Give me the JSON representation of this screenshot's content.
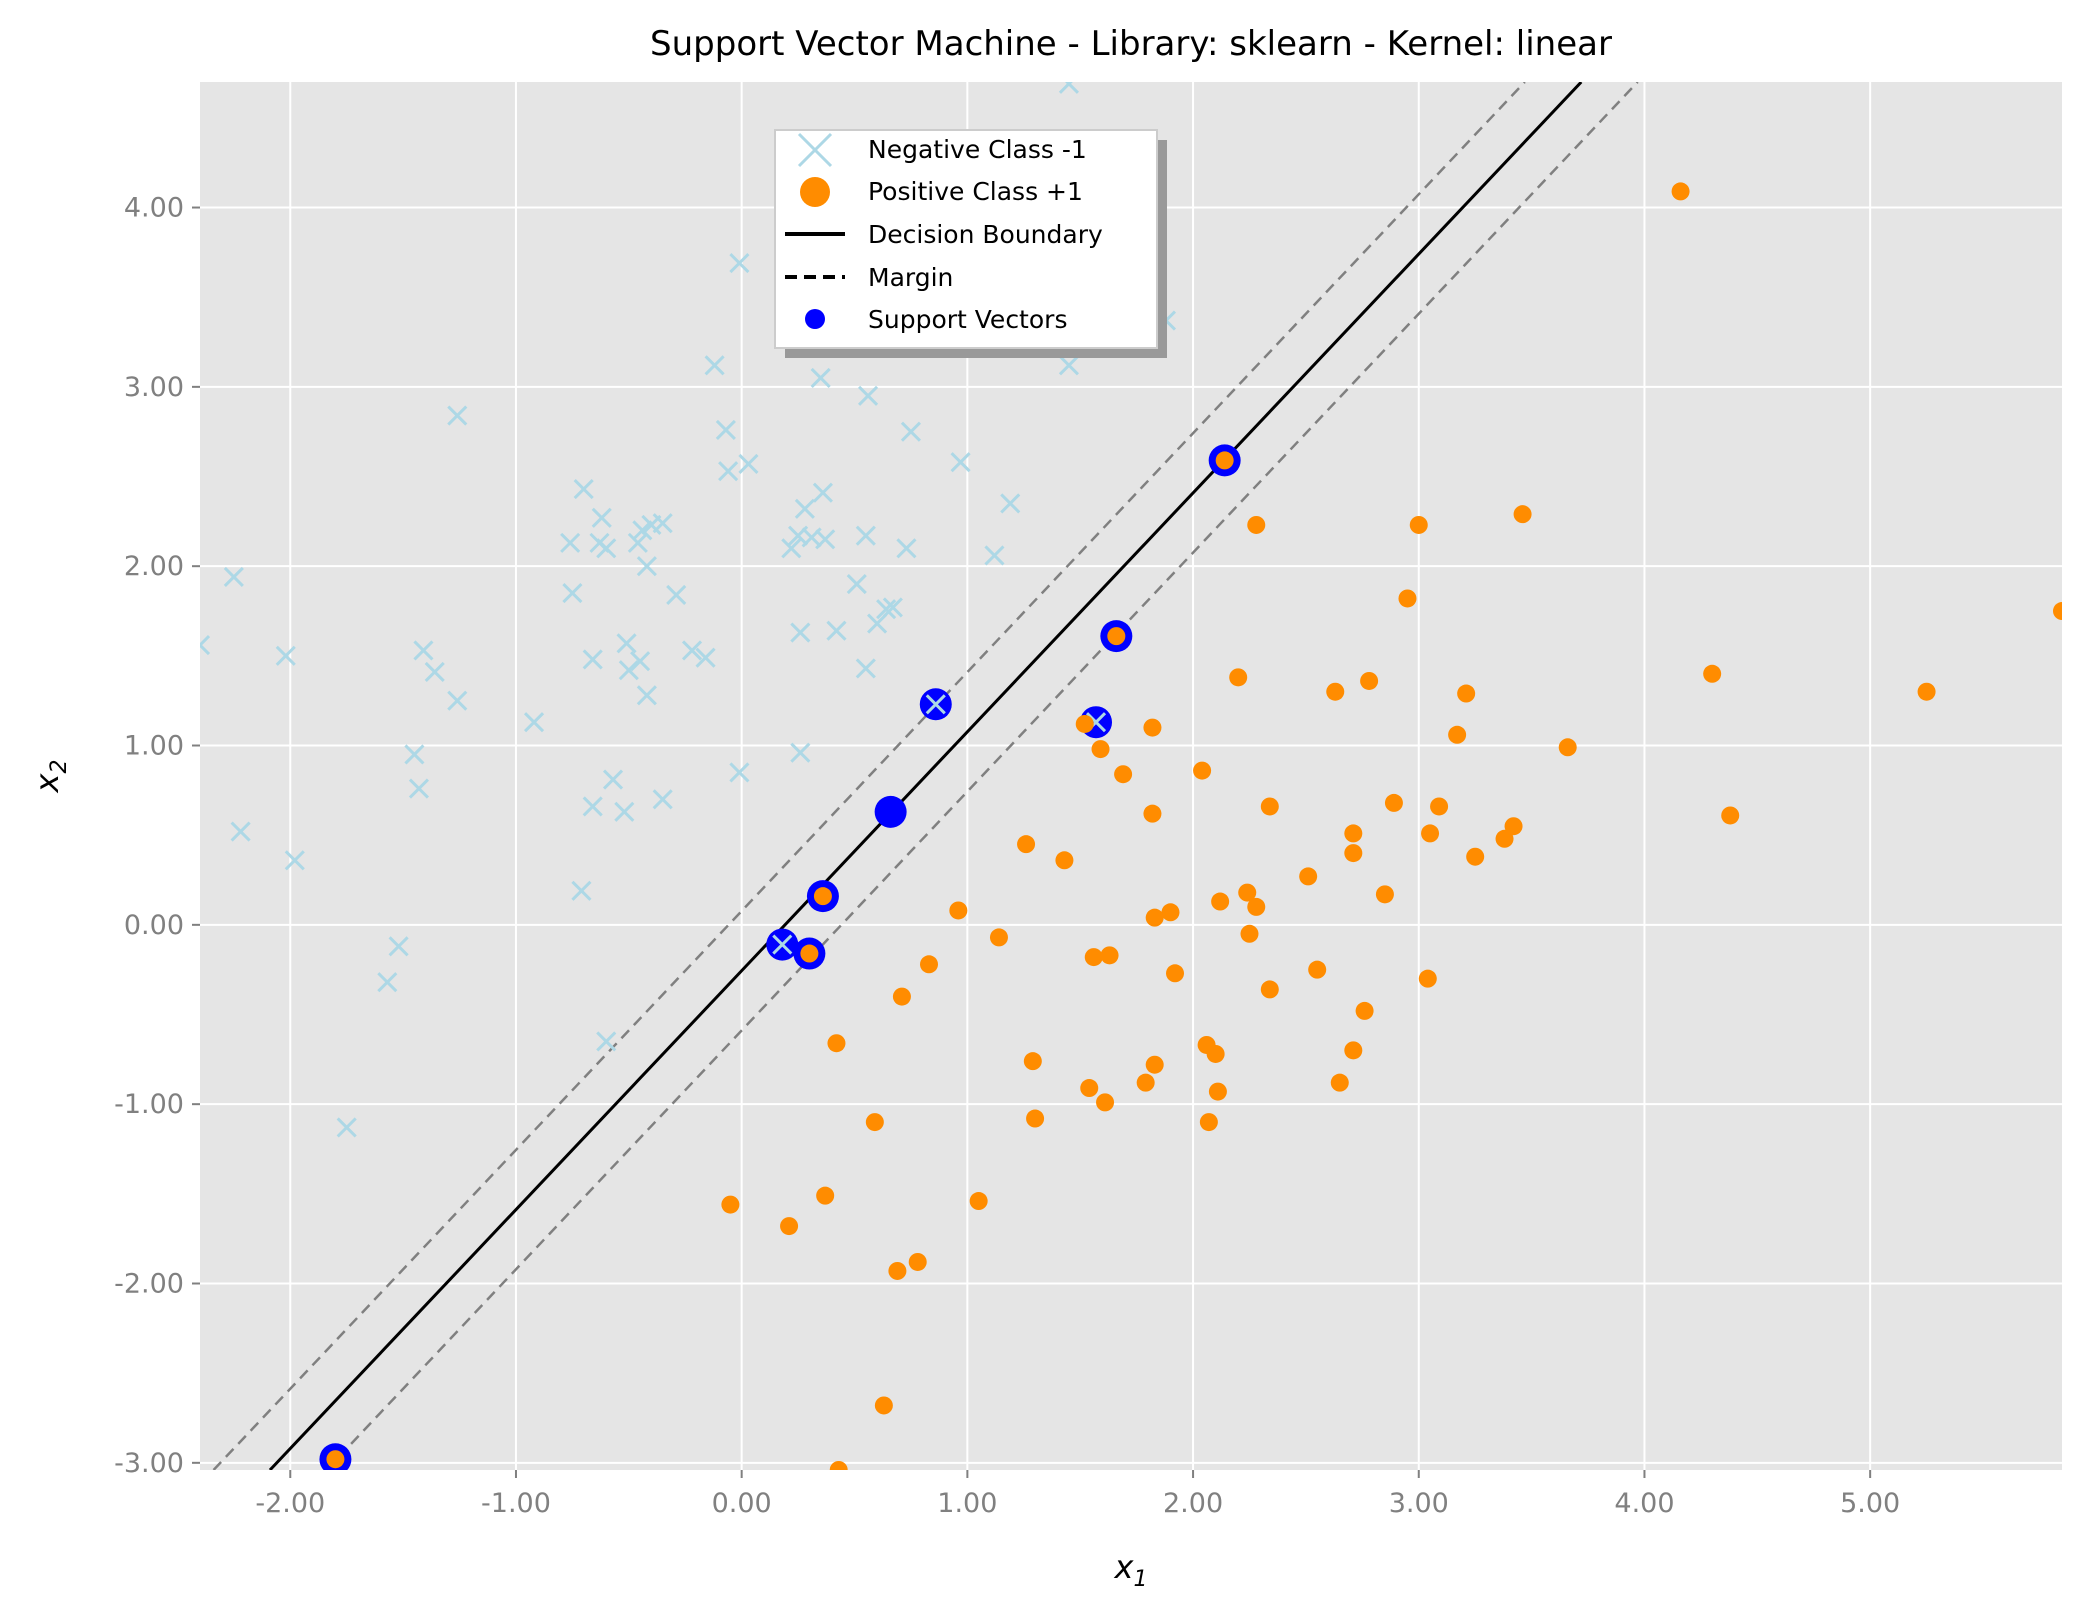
{
  "chart_data": {
    "type": "scatter",
    "title": "Support Vector Machine - Library: sklearn - Kernel: linear",
    "xlabel_main": "x",
    "xlabel_sub": "1",
    "ylabel_main": "x",
    "ylabel_sub": "2",
    "xlim": [
      -2.4,
      5.85
    ],
    "ylim": [
      -3.04,
      4.7
    ],
    "grid": true,
    "legend_position": "upper center",
    "colors": {
      "negative": "#add8e6",
      "positive": "#ff8c00",
      "boundary": "#000000",
      "margin": "#808080",
      "support_vectors": "#0000ff",
      "axes_bg": "#e5e5e5",
      "grid": "#ffffff",
      "tick_text": "#808080"
    },
    "x_ticks": [
      {
        "value": -2,
        "label": "-2.00"
      },
      {
        "value": -1,
        "label": "-1.00"
      },
      {
        "value": 0,
        "label": "0.00"
      },
      {
        "value": 1,
        "label": "1.00"
      },
      {
        "value": 2,
        "label": "2.00"
      },
      {
        "value": 3,
        "label": "3.00"
      },
      {
        "value": 4,
        "label": "4.00"
      },
      {
        "value": 5,
        "label": "5.00"
      }
    ],
    "y_ticks": [
      {
        "value": -3,
        "label": "-3.00"
      },
      {
        "value": -2,
        "label": "-2.00"
      },
      {
        "value": -1,
        "label": "-1.00"
      },
      {
        "value": 0,
        "label": "0.00"
      },
      {
        "value": 1,
        "label": "1.00"
      },
      {
        "value": 2,
        "label": "2.00"
      },
      {
        "value": 3,
        "label": "3.00"
      },
      {
        "value": 4,
        "label": "4.00"
      }
    ],
    "legend": [
      {
        "label": "Negative Class -1",
        "marker": "x"
      },
      {
        "label": "Positive Class +1",
        "marker": "circle"
      },
      {
        "label": "Decision Boundary",
        "marker": "solid-line"
      },
      {
        "label": "Margin",
        "marker": "dashed-line"
      },
      {
        "label": "Support Vectors",
        "marker": "dot"
      }
    ],
    "lines": {
      "decision_boundary": [
        [
          -2.09,
          -3.04
        ],
        [
          3.72,
          4.7
        ]
      ],
      "margin_upper": [
        [
          -2.34,
          -3.04
        ],
        [
          3.47,
          4.7
        ]
      ],
      "margin_lower": [
        [
          -1.84,
          -3.04
        ],
        [
          3.97,
          4.7
        ]
      ]
    },
    "negative_points": [
      [
        -2.4,
        1.56
      ],
      [
        -2.25,
        1.94
      ],
      [
        -2.22,
        0.52
      ],
      [
        -2.02,
        1.5
      ],
      [
        -1.98,
        0.36
      ],
      [
        -1.75,
        -1.13
      ],
      [
        -1.57,
        -0.32
      ],
      [
        -1.52,
        -0.12
      ],
      [
        -1.45,
        0.95
      ],
      [
        -1.43,
        0.76
      ],
      [
        -1.41,
        1.53
      ],
      [
        -1.36,
        1.41
      ],
      [
        -1.26,
        1.25
      ],
      [
        -1.26,
        2.84
      ],
      [
        -0.92,
        1.13
      ],
      [
        -0.76,
        2.13
      ],
      [
        -0.75,
        1.85
      ],
      [
        -0.71,
        0.19
      ],
      [
        -0.7,
        2.43
      ],
      [
        -0.66,
        1.48
      ],
      [
        -0.66,
        0.66
      ],
      [
        -0.63,
        2.13
      ],
      [
        -0.62,
        2.27
      ],
      [
        -0.6,
        2.1
      ],
      [
        -0.6,
        -0.65
      ],
      [
        -0.57,
        0.81
      ],
      [
        -0.52,
        0.63
      ],
      [
        -0.51,
        1.57
      ],
      [
        -0.5,
        1.42
      ],
      [
        -0.46,
        2.13
      ],
      [
        -0.45,
        1.47
      ],
      [
        -0.44,
        2.2
      ],
      [
        -0.42,
        2.0
      ],
      [
        -0.42,
        1.28
      ],
      [
        -0.4,
        2.23
      ],
      [
        -0.35,
        2.24
      ],
      [
        -0.35,
        0.7
      ],
      [
        -0.29,
        1.84
      ],
      [
        -0.22,
        1.53
      ],
      [
        -0.16,
        1.49
      ],
      [
        -0.12,
        3.12
      ],
      [
        -0.07,
        2.76
      ],
      [
        -0.06,
        2.53
      ],
      [
        -0.01,
        3.69
      ],
      [
        -0.01,
        0.85
      ],
      [
        0.03,
        2.57
      ],
      [
        0.18,
        -0.11
      ],
      [
        0.22,
        2.1
      ],
      [
        0.25,
        2.17
      ],
      [
        0.26,
        0.96
      ],
      [
        0.26,
        1.63
      ],
      [
        0.28,
        2.32
      ],
      [
        0.31,
        2.16
      ],
      [
        0.35,
        3.05
      ],
      [
        0.36,
        2.41
      ],
      [
        0.37,
        2.15
      ],
      [
        0.42,
        1.64
      ],
      [
        0.51,
        1.9
      ],
      [
        0.55,
        1.43
      ],
      [
        0.55,
        2.17
      ],
      [
        0.56,
        2.95
      ],
      [
        0.6,
        1.68
      ],
      [
        0.64,
        1.76
      ],
      [
        0.67,
        1.77
      ],
      [
        0.73,
        2.1
      ],
      [
        0.75,
        2.75
      ],
      [
        0.86,
        1.23
      ],
      [
        0.97,
        2.58
      ],
      [
        1.12,
        2.06
      ],
      [
        1.19,
        2.35
      ],
      [
        1.45,
        3.12
      ],
      [
        1.45,
        4.69
      ],
      [
        1.57,
        1.13
      ],
      [
        1.88,
        3.37
      ]
    ],
    "positive_points": [
      [
        -1.8,
        -2.98
      ],
      [
        -0.05,
        -1.56
      ],
      [
        0.21,
        -1.68
      ],
      [
        0.3,
        -0.16
      ],
      [
        0.36,
        0.16
      ],
      [
        0.37,
        -1.51
      ],
      [
        0.42,
        -0.66
      ],
      [
        0.43,
        -3.04
      ],
      [
        0.59,
        -1.1
      ],
      [
        0.63,
        -2.68
      ],
      [
        0.69,
        -1.93
      ],
      [
        0.71,
        -0.4
      ],
      [
        0.78,
        -1.88
      ],
      [
        0.83,
        -0.22
      ],
      [
        0.96,
        0.08
      ],
      [
        1.05,
        -1.54
      ],
      [
        1.14,
        -0.07
      ],
      [
        1.26,
        0.45
      ],
      [
        1.29,
        -0.76
      ],
      [
        1.3,
        -1.08
      ],
      [
        1.43,
        0.36
      ],
      [
        1.52,
        1.12
      ],
      [
        1.54,
        -0.91
      ],
      [
        1.56,
        -0.18
      ],
      [
        1.59,
        0.98
      ],
      [
        1.61,
        -0.99
      ],
      [
        1.63,
        -0.17
      ],
      [
        1.66,
        1.61
      ],
      [
        1.69,
        0.84
      ],
      [
        1.79,
        -0.88
      ],
      [
        1.82,
        0.62
      ],
      [
        1.82,
        1.1
      ],
      [
        1.83,
        -0.78
      ],
      [
        1.83,
        0.04
      ],
      [
        1.9,
        0.07
      ],
      [
        1.92,
        -0.27
      ],
      [
        2.04,
        0.86
      ],
      [
        2.06,
        -0.67
      ],
      [
        2.07,
        -1.1
      ],
      [
        2.1,
        -0.72
      ],
      [
        2.11,
        -0.93
      ],
      [
        2.12,
        0.13
      ],
      [
        2.14,
        2.59
      ],
      [
        2.2,
        1.38
      ],
      [
        2.24,
        0.18
      ],
      [
        2.25,
        -0.05
      ],
      [
        2.28,
        0.1
      ],
      [
        2.28,
        2.23
      ],
      [
        2.34,
        0.66
      ],
      [
        2.34,
        -0.36
      ],
      [
        2.51,
        0.27
      ],
      [
        2.55,
        -0.25
      ],
      [
        2.63,
        1.3
      ],
      [
        2.65,
        -0.88
      ],
      [
        2.71,
        -0.7
      ],
      [
        2.71,
        0.51
      ],
      [
        2.71,
        0.4
      ],
      [
        2.76,
        -0.48
      ],
      [
        2.78,
        1.36
      ],
      [
        2.85,
        0.17
      ],
      [
        2.89,
        0.68
      ],
      [
        2.95,
        1.82
      ],
      [
        3.0,
        2.23
      ],
      [
        3.04,
        -0.3
      ],
      [
        3.05,
        0.51
      ],
      [
        3.09,
        0.66
      ],
      [
        3.17,
        1.06
      ],
      [
        3.21,
        1.29
      ],
      [
        3.25,
        0.38
      ],
      [
        3.38,
        0.48
      ],
      [
        3.42,
        0.55
      ],
      [
        3.46,
        2.29
      ],
      [
        3.66,
        0.99
      ],
      [
        4.16,
        4.09
      ],
      [
        4.3,
        1.4
      ],
      [
        4.38,
        0.61
      ],
      [
        5.25,
        1.3
      ],
      [
        5.85,
        1.75
      ]
    ],
    "support_vectors": [
      [
        -1.8,
        -2.98
      ],
      [
        0.18,
        -0.11
      ],
      [
        0.3,
        -0.16
      ],
      [
        0.36,
        0.16
      ],
      [
        0.66,
        0.63
      ],
      [
        0.86,
        1.23
      ],
      [
        1.57,
        1.13
      ],
      [
        1.66,
        1.61
      ],
      [
        2.14,
        2.59
      ]
    ]
  }
}
